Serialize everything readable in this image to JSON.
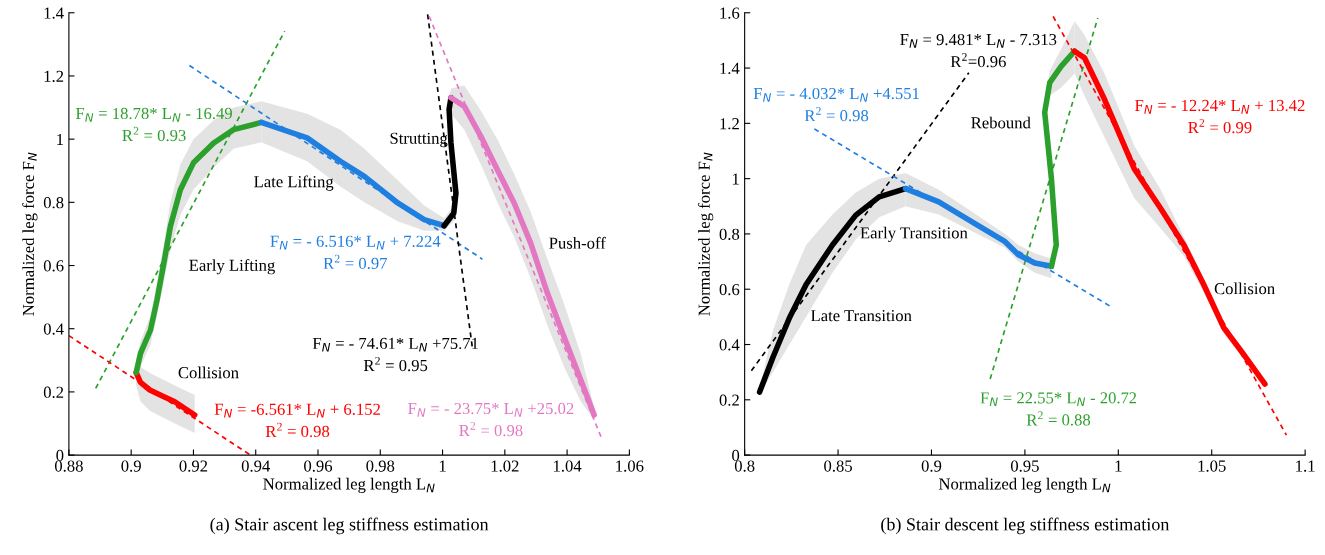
{
  "chart_data": [
    {
      "type": "line",
      "title": "(a) Stair ascent leg stiffness estimation",
      "xlabel": "Normalized leg length L$_{N}$",
      "ylabel": "Normalized leg force F$_{N}$",
      "xlim": [
        0.88,
        1.06
      ],
      "xticks": [
        0.88,
        0.9,
        0.92,
        0.94,
        0.96,
        0.98,
        1,
        1.02,
        1.04,
        1.06
      ],
      "ylim": [
        0,
        1.4
      ],
      "yticks": [
        0,
        0.2,
        0.4,
        0.6,
        0.8,
        1,
        1.2,
        1.4
      ],
      "grid": false,
      "legend": false,
      "series": [
        {
          "type": "line",
          "name": "F$_{N}$ = 18.78* L$_{N}$ - 16.49\nR$^{2}$ = 0.93",
          "color": "#2ca02c",
          "line_style": "dashed",
          "x": [
            0.8886,
            0.9493
          ],
          "values": [
            0.211,
            1.342
          ]
        },
        {
          "type": "line",
          "name": "F$_{N}$ = - 6.516* L$_{N}$ + 7.224\nR$^{2}$ = 0.97",
          "color": "#1f7fe0",
          "line_style": "dashed",
          "x": [
            0.9187,
            1.0128
          ],
          "values": [
            1.233,
            0.62
          ]
        },
        {
          "type": "line",
          "name": "F$_{N}$ = -6.561* L$_{N}$ + 6.152\nR$^{2}$ = 0.98",
          "color": "#ff0000",
          "line_style": "dashed",
          "x": [
            0.88,
            0.9383
          ],
          "values": [
            0.378,
            0
          ]
        },
        {
          "type": "line",
          "name": "F$_{N}$ = - 74.61* L$_{N}$ +75.71\nR$^{2}$ = 0.95",
          "color": "#000000",
          "line_style": "dashed",
          "x": [
            0.9952,
            1.0096
          ],
          "values": [
            1.395,
            0.338
          ]
        },
        {
          "type": "line",
          "name": "F$_{N}$ = - 23.75* L$_{N}$ +25.02\nR$^{2}$ = 0.98",
          "color": "#e377c2",
          "line_style": "dashed",
          "x": [
            0.9957,
            1.0513
          ],
          "values": [
            1.389,
            0.048
          ]
        },
        {
          "type": "line",
          "name": "Collision",
          "color": "#ff0000",
          "line_style": "solid",
          "x": [
            0.9016,
            0.903,
            0.906,
            0.91,
            0.914,
            0.9204
          ],
          "values": [
            0.261,
            0.23,
            0.206,
            0.187,
            0.169,
            0.127
          ],
          "lower": [
            0.22,
            0.17,
            0.14,
            0.12,
            0.1,
            0.07
          ],
          "upper": [
            0.3,
            0.28,
            0.26,
            0.24,
            0.22,
            0.19
          ]
        },
        {
          "type": "line",
          "name": "Early Lifting",
          "color": "#2ca02c",
          "line_style": "solid",
          "x": [
            0.9016,
            0.903,
            0.9062,
            0.9083,
            0.9105,
            0.9126,
            0.9158,
            0.92,
            0.9265,
            0.9329,
            0.9418
          ],
          "values": [
            0.261,
            0.322,
            0.396,
            0.491,
            0.608,
            0.724,
            0.84,
            0.925,
            0.988,
            1.03,
            1.053
          ],
          "lower": [
            0.22,
            0.28,
            0.35,
            0.44,
            0.55,
            0.65,
            0.76,
            0.84,
            0.91,
            0.97,
            0.99
          ],
          "upper": [
            0.3,
            0.36,
            0.44,
            0.55,
            0.67,
            0.8,
            0.92,
            1.0,
            1.06,
            1.1,
            1.12
          ]
        },
        {
          "type": "line",
          "name": "Late Lifting",
          "color": "#1f7fe0",
          "line_style": "solid",
          "x": [
            0.9418,
            0.9565,
            0.9672,
            0.9749,
            0.9856,
            0.9941,
            1.0005
          ],
          "values": [
            1.053,
            1.004,
            0.93,
            0.882,
            0.798,
            0.745,
            0.726
          ],
          "lower": [
            0.99,
            0.93,
            0.85,
            0.8,
            0.74,
            0.71,
            0.71
          ],
          "upper": [
            1.12,
            1.08,
            1.03,
            0.97,
            0.87,
            0.79,
            0.75
          ]
        },
        {
          "type": "line",
          "name": "Strutting",
          "color": "#000000",
          "line_style": "solid",
          "x": [
            1.0005,
            1.0036,
            1.0043,
            1.0027,
            1.0021,
            1.0027
          ],
          "values": [
            0.726,
            0.766,
            0.829,
            0.988,
            1.094,
            1.131
          ],
          "lower": [
            0.71,
            0.74,
            0.8,
            0.96,
            1.06,
            1.1
          ],
          "upper": [
            0.75,
            0.79,
            0.86,
            1.02,
            1.13,
            1.16
          ]
        },
        {
          "type": "line",
          "name": "Push-off",
          "color": "#e377c2",
          "line_style": "solid",
          "x": [
            1.0027,
            1.007,
            1.0123,
            1.0176,
            1.023,
            1.0283,
            1.0337,
            1.039,
            1.0444,
            1.0487
          ],
          "values": [
            1.131,
            1.104,
            1.009,
            0.903,
            0.798,
            0.671,
            0.512,
            0.375,
            0.238,
            0.127
          ],
          "lower": [
            1.08,
            1.03,
            0.92,
            0.8,
            0.69,
            0.56,
            0.41,
            0.28,
            0.17,
            0.11
          ],
          "upper": [
            1.16,
            1.17,
            1.09,
            1.0,
            0.89,
            0.77,
            0.62,
            0.48,
            0.32,
            0.15
          ]
        }
      ]
    },
    {
      "type": "line",
      "title": "(b) Stair descent leg stiffness estimation",
      "xlabel": "Normalized leg length L$_{N}$",
      "ylabel": "Normalized leg force F$_{N}$",
      "xlim": [
        0.8,
        1.1
      ],
      "xticks": [
        0.8,
        0.85,
        0.9,
        0.95,
        1,
        1.05,
        1.1
      ],
      "ylim": [
        0,
        1.6
      ],
      "yticks": [
        0,
        0.2,
        0.4,
        0.6,
        0.8,
        1,
        1.2,
        1.4,
        1.6
      ],
      "grid": false,
      "legend": false,
      "series": [
        {
          "type": "line",
          "name": "F$_{N}$ = 9.481* L$_{N}$ - 7.313\nR$^{2}$=0.96",
          "color": "#000000",
          "line_style": "dashed",
          "x": [
            0.8036,
            0.92
          ],
          "values": [
            0.305,
            1.383
          ]
        },
        {
          "type": "line",
          "name": "F$_{N}$ = - 4.032* L$_{N}$ +4.551\nR$^{2}$ = 0.98",
          "color": "#1f7fe0",
          "line_style": "dashed",
          "x": [
            0.8373,
            0.997
          ],
          "values": [
            1.18,
            0.533
          ]
        },
        {
          "type": "line",
          "name": "F$_{N}$ = 22.55* L$_{N}$ - 20.72\nR$^{2}$ = 0.88",
          "color": "#2ca02c",
          "line_style": "dashed",
          "x": [
            0.9314,
            0.989
          ],
          "values": [
            0.275,
            1.581
          ]
        },
        {
          "type": "line",
          "name": "F$_{N}$ = - 12.24* L$_{N}$ + 13.42\nR$^{2}$ = 0.99",
          "color": "#ff0000",
          "line_style": "dashed",
          "x": [
            0.9651,
            1.09
          ],
          "values": [
            1.587,
            0.072
          ]
        },
        {
          "type": "line",
          "name": "Late Transition",
          "color": "#000000",
          "line_style": "solid",
          "x": [
            0.808,
            0.8151,
            0.824,
            0.8329,
            0.847,
            0.8595,
            0.872,
            0.8861
          ],
          "values": [
            0.228,
            0.353,
            0.497,
            0.617,
            0.76,
            0.868,
            0.934,
            0.964
          ],
          "lower": [
            0.22,
            0.3,
            0.4,
            0.5,
            0.66,
            0.78,
            0.86,
            0.9
          ],
          "upper": [
            0.24,
            0.45,
            0.62,
            0.76,
            0.87,
            0.95,
            1.0,
            1.02
          ]
        },
        {
          "type": "line",
          "name": "Early Transition",
          "color": "#1f7fe0",
          "line_style": "solid",
          "x": [
            0.8861,
            0.9039,
            0.9217,
            0.9394,
            0.9465,
            0.9553,
            0.9642
          ],
          "values": [
            0.964,
            0.916,
            0.844,
            0.772,
            0.725,
            0.695,
            0.683
          ],
          "lower": [
            0.9,
            0.87,
            0.81,
            0.75,
            0.7,
            0.66,
            0.64
          ],
          "upper": [
            1.02,
            0.96,
            0.88,
            0.8,
            0.76,
            0.73,
            0.71
          ]
        },
        {
          "type": "line",
          "name": "Rebound",
          "color": "#2ca02c",
          "line_style": "solid",
          "x": [
            0.9642,
            0.9668,
            0.9642,
            0.9606,
            0.9633,
            0.9695,
            0.9766
          ],
          "values": [
            0.683,
            0.76,
            1.0,
            1.24,
            1.347,
            1.407,
            1.461
          ],
          "lower": [
            0.66,
            0.74,
            0.98,
            1.22,
            1.3,
            1.33,
            1.38
          ],
          "upper": [
            0.7,
            0.78,
            1.02,
            1.26,
            1.39,
            1.47,
            1.57
          ]
        },
        {
          "type": "line",
          "name": "Collision",
          "color": "#ff0000",
          "line_style": "solid",
          "x": [
            0.9766,
            0.9819,
            0.9926,
            1.0085,
            1.0227,
            1.0351,
            1.0457,
            1.0564,
            1.067,
            1.0785
          ],
          "values": [
            1.461,
            1.437,
            1.287,
            1.036,
            0.892,
            0.76,
            0.617,
            0.461,
            0.365,
            0.257
          ],
          "lower": [
            1.38,
            1.3,
            1.15,
            0.93,
            0.82,
            0.72,
            0.59,
            0.44,
            0.35,
            0.25
          ],
          "upper": [
            1.57,
            1.52,
            1.38,
            1.12,
            0.96,
            0.79,
            0.64,
            0.48,
            0.38,
            0.27
          ]
        }
      ]
    }
  ]
}
